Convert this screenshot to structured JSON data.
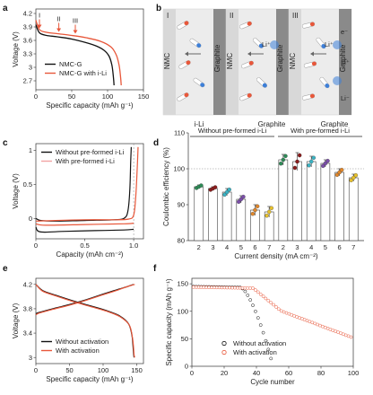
{
  "colors": {
    "black": "#111111",
    "red": "#e8573a",
    "pink": "#f2a3a3",
    "blue": "#3d7fd8",
    "grey": "#b9b9b9"
  },
  "panels": {
    "a": {
      "letter": "a",
      "legend": [
        "NMC-G",
        "NMC-G with i-Li"
      ],
      "arrows": [
        "I",
        "II",
        "III"
      ]
    },
    "b": {
      "letter": "b",
      "titles": [
        "I",
        "II",
        "III"
      ],
      "labels": {
        "nmc": "NMC",
        "graphite": "Graphite",
        "ili": "i-Li",
        "e": "e⁻",
        "li": "Li⁺",
        "liminus": "Li⁻"
      }
    },
    "c": {
      "letter": "c",
      "legend": [
        "Without pre-formed i-Li",
        "With pre-formed i-Li"
      ]
    },
    "d": {
      "letter": "d",
      "bracket_left": "Without pre-formed i-Li",
      "bracket_right": "With pre-formed i-Li"
    },
    "e": {
      "letter": "e",
      "legend": [
        "Without activation",
        "With activation"
      ]
    },
    "f": {
      "letter": "f",
      "legend": [
        "Without activation",
        "With activation"
      ]
    }
  },
  "chart_data": [
    {
      "id": "a",
      "type": "line",
      "xlabel": "Specific capacity (mAh g⁻¹)",
      "ylabel": "Voltage (V)",
      "xlim": [
        0,
        150
      ],
      "ylim": [
        2.5,
        4.3
      ],
      "xticks": [
        0,
        50,
        100,
        150
      ],
      "yticks": [
        2.7,
        3.0,
        3.3,
        3.6,
        3.9,
        4.2
      ],
      "series": [
        {
          "name": "NMC-G",
          "color": "black",
          "points": [
            [
              0,
              3.95
            ],
            [
              5,
              3.77
            ],
            [
              15,
              3.71
            ],
            [
              30,
              3.68
            ],
            [
              50,
              3.63
            ],
            [
              70,
              3.55
            ],
            [
              85,
              3.47
            ],
            [
              95,
              3.38
            ],
            [
              102,
              3.25
            ],
            [
              106,
              3.05
            ],
            [
              108,
              2.8
            ],
            [
              109,
              2.6
            ]
          ]
        },
        {
          "name": "NMC-G with i-Li",
          "color": "red",
          "points": [
            [
              0,
              4.05
            ],
            [
              5,
              3.84
            ],
            [
              15,
              3.78
            ],
            [
              30,
              3.75
            ],
            [
              50,
              3.71
            ],
            [
              70,
              3.66
            ],
            [
              90,
              3.58
            ],
            [
              105,
              3.45
            ],
            [
              112,
              3.28
            ],
            [
              116,
              3.05
            ],
            [
              118,
              2.8
            ],
            [
              119,
              2.6
            ]
          ]
        }
      ]
    },
    {
      "id": "c",
      "type": "line",
      "xlabel": "Capacity (mAh cm⁻²)",
      "ylabel": "Voltage (V)",
      "xlim": [
        0,
        1.1
      ],
      "ylim": [
        -0.3,
        1.1
      ],
      "xticks": [
        0,
        0.5,
        1.0
      ],
      "yticks": [
        0,
        0.5,
        1.0
      ],
      "series": [
        {
          "name": "Without pre-formed i-Li",
          "color": "black",
          "upper": [
            [
              0,
              0
            ],
            [
              0.05,
              -0.03
            ],
            [
              0.2,
              -0.04
            ],
            [
              0.5,
              -0.03
            ],
            [
              0.8,
              -0.02
            ],
            [
              0.9,
              0.0
            ],
            [
              0.94,
              0.1
            ],
            [
              0.96,
              0.4
            ],
            [
              0.97,
              0.85
            ],
            [
              0.975,
              1.05
            ]
          ],
          "lower": [
            [
              0,
              -0.13
            ],
            [
              0.05,
              -0.2
            ],
            [
              0.3,
              -0.19
            ],
            [
              0.6,
              -0.18
            ],
            [
              0.9,
              -0.17
            ],
            [
              1.0,
              -0.16
            ]
          ]
        },
        {
          "name": "With pre-formed i-Li",
          "color": "red",
          "upper": [
            [
              0,
              -0.04
            ],
            [
              0.2,
              -0.03
            ],
            [
              0.5,
              -0.02
            ],
            [
              0.8,
              -0.02
            ],
            [
              0.95,
              -0.01
            ],
            [
              1.0,
              0.05
            ],
            [
              1.02,
              0.3
            ],
            [
              1.035,
              0.7
            ],
            [
              1.045,
              1.05
            ]
          ],
          "lower": [
            [
              0,
              -0.08
            ],
            [
              0.1,
              -0.1
            ],
            [
              0.5,
              -0.09
            ],
            [
              0.9,
              -0.08
            ],
            [
              1.0,
              -0.07
            ]
          ]
        }
      ]
    },
    {
      "id": "d",
      "type": "bar",
      "xlabel": "Current density (mA cm⁻²)",
      "ylabel": "Coulombic efficiency (%)",
      "ylim": [
        80,
        110
      ],
      "yticks": [
        80,
        90,
        100,
        110
      ],
      "refline": 100,
      "categories": [
        "2",
        "3",
        "4",
        "5",
        "6",
        "7",
        "2",
        "3",
        "4",
        "5",
        "6",
        "7"
      ],
      "values": [
        95,
        94.5,
        93.5,
        91.5,
        88.5,
        88,
        102.5,
        102,
        102,
        101.5,
        99,
        97.5
      ],
      "errors": [
        0.5,
        0.5,
        1,
        1,
        1.5,
        1.5,
        1.5,
        2.5,
        1.5,
        1,
        1,
        1
      ],
      "dot_colors": [
        "#2e8b57",
        "#8a1c1c",
        "#3ab3c4",
        "#7b4fa8",
        "#e0872b",
        "#e7c12e",
        "#2e8b57",
        "#8a1c1c",
        "#3ab3c4",
        "#7b4fa8",
        "#e0872b",
        "#e7c12e"
      ]
    },
    {
      "id": "e",
      "type": "line",
      "xlabel": "Specific capacity (mAh g⁻¹)",
      "ylabel": "Voltage (V)",
      "xlim": [
        0,
        160
      ],
      "ylim": [
        2.9,
        4.3
      ],
      "xticks": [
        0,
        50,
        100,
        150
      ],
      "yticks": [
        3.0,
        3.4,
        3.8,
        4.2
      ],
      "series": [
        {
          "name": "Without activation",
          "color": "black",
          "charge": [
            [
              0,
              3.72
            ],
            [
              5,
              3.74
            ],
            [
              25,
              3.8
            ],
            [
              50,
              3.87
            ],
            [
              75,
              3.95
            ],
            [
              100,
              4.04
            ],
            [
              120,
              4.11
            ],
            [
              135,
              4.16
            ],
            [
              145,
              4.2
            ]
          ],
          "discharge": [
            [
              0,
              4.2
            ],
            [
              10,
              4.1
            ],
            [
              30,
              4.02
            ],
            [
              55,
              3.93
            ],
            [
              80,
              3.85
            ],
            [
              105,
              3.77
            ],
            [
              125,
              3.68
            ],
            [
              138,
              3.55
            ],
            [
              143,
              3.35
            ],
            [
              145,
              3.1
            ],
            [
              146,
              3.0
            ]
          ]
        },
        {
          "name": "With activation",
          "color": "red",
          "charge": [
            [
              0,
              3.7
            ],
            [
              5,
              3.73
            ],
            [
              25,
              3.79
            ],
            [
              50,
              3.86
            ],
            [
              75,
              3.94
            ],
            [
              100,
              4.03
            ],
            [
              120,
              4.1
            ],
            [
              135,
              4.16
            ],
            [
              147,
              4.2
            ]
          ],
          "discharge": [
            [
              0,
              4.2
            ],
            [
              10,
              4.09
            ],
            [
              30,
              4.01
            ],
            [
              55,
              3.92
            ],
            [
              80,
              3.84
            ],
            [
              105,
              3.76
            ],
            [
              125,
              3.67
            ],
            [
              139,
              3.53
            ],
            [
              144,
              3.3
            ],
            [
              146,
              3.05
            ],
            [
              147,
              3.0
            ]
          ]
        }
      ]
    },
    {
      "id": "f",
      "type": "scatter",
      "xlabel": "Cycle number",
      "ylabel": "Specific capacity (mAh g⁻¹)",
      "xlim": [
        0,
        100
      ],
      "ylim": [
        0,
        160
      ],
      "xticks": [
        0,
        20,
        40,
        60,
        80,
        100
      ],
      "yticks": [
        0,
        50,
        100,
        150
      ],
      "series": [
        {
          "name": "Without activation",
          "color": "black",
          "fn": "a"
        },
        {
          "name": "With activation",
          "color": "red",
          "fn": "b"
        }
      ]
    }
  ]
}
